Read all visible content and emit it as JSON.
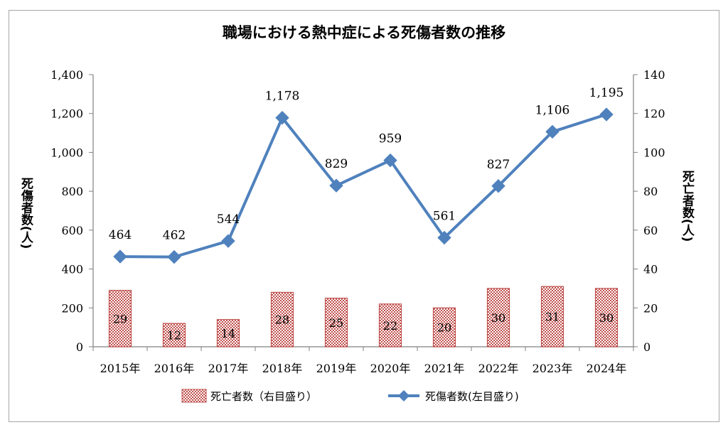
{
  "chart_data": {
    "type": "bar+line",
    "title": "職場における熱中症による死傷者数の推移",
    "categories": [
      "2015年",
      "2016年",
      "2017年",
      "2018年",
      "2019年",
      "2020年",
      "2021年",
      "2022年",
      "2023年",
      "2024年"
    ],
    "series": [
      {
        "name": "死亡者数（右目盛り）",
        "type": "bar",
        "axis": "right",
        "values": [
          29,
          12,
          14,
          28,
          25,
          22,
          20,
          30,
          31,
          30
        ],
        "labels": [
          "29",
          "12",
          "14",
          "28",
          "25",
          "22",
          "20",
          "30",
          "31",
          "30"
        ],
        "fill": "#c0504d",
        "pattern": "small-checker"
      },
      {
        "name": "死傷者数(左目盛り)",
        "type": "line",
        "axis": "left",
        "values": [
          464,
          462,
          544,
          1178,
          829,
          959,
          561,
          827,
          1106,
          1195
        ],
        "labels": [
          "464",
          "462",
          "544",
          "1,178",
          "829",
          "959",
          "561",
          "827",
          "1,106",
          "1,195"
        ],
        "color": "#4f81bd",
        "marker": "diamond"
      }
    ],
    "y_left": {
      "label": "死傷者数(人)",
      "ylim": [
        0,
        1400
      ],
      "ticks": [
        0,
        200,
        400,
        600,
        800,
        1000,
        1200,
        1400
      ],
      "tick_labels": [
        "0",
        "200",
        "400",
        "600",
        "800",
        "1,000",
        "1,200",
        "1,400"
      ]
    },
    "y_right": {
      "label": "死亡者数(人)",
      "ylim": [
        0,
        140
      ],
      "ticks": [
        0,
        20,
        40,
        60,
        80,
        100,
        120,
        140
      ],
      "tick_labels": [
        "0",
        "20",
        "40",
        "60",
        "80",
        "100",
        "120",
        "140"
      ]
    },
    "grid": false,
    "legend_position": "bottom"
  }
}
